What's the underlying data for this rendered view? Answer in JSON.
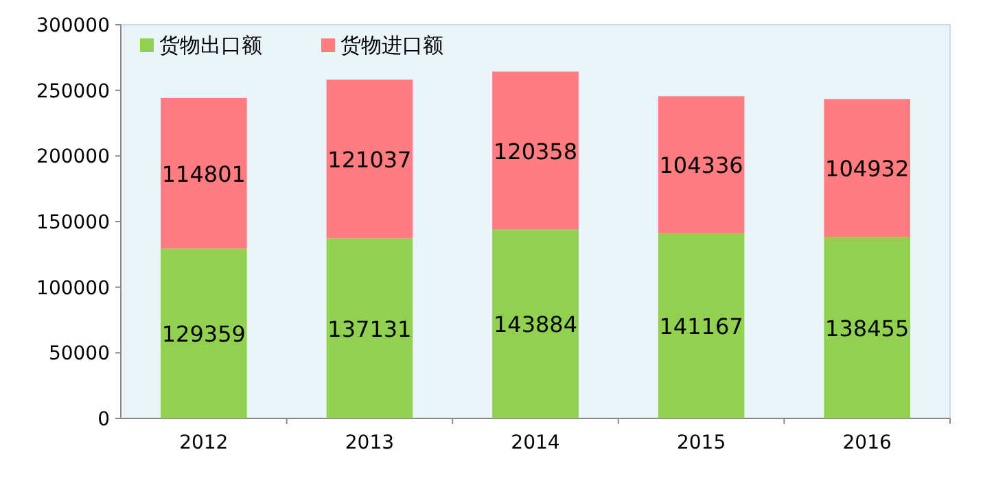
{
  "chart_data": {
    "type": "bar",
    "stacked": true,
    "categories": [
      "2012",
      "2013",
      "2014",
      "2015",
      "2016"
    ],
    "series": [
      {
        "name": "货物出口额",
        "color": "#92d050",
        "values": [
          129359,
          137131,
          143884,
          141167,
          138455
        ]
      },
      {
        "name": "货物进口额",
        "color": "#ff7c80",
        "values": [
          114801,
          121037,
          120358,
          104336,
          104932
        ]
      }
    ],
    "ylim": [
      0,
      300000
    ],
    "yticks": [
      0,
      50000,
      100000,
      150000,
      200000,
      250000,
      300000
    ],
    "data_labels": true,
    "legend": "top left"
  }
}
